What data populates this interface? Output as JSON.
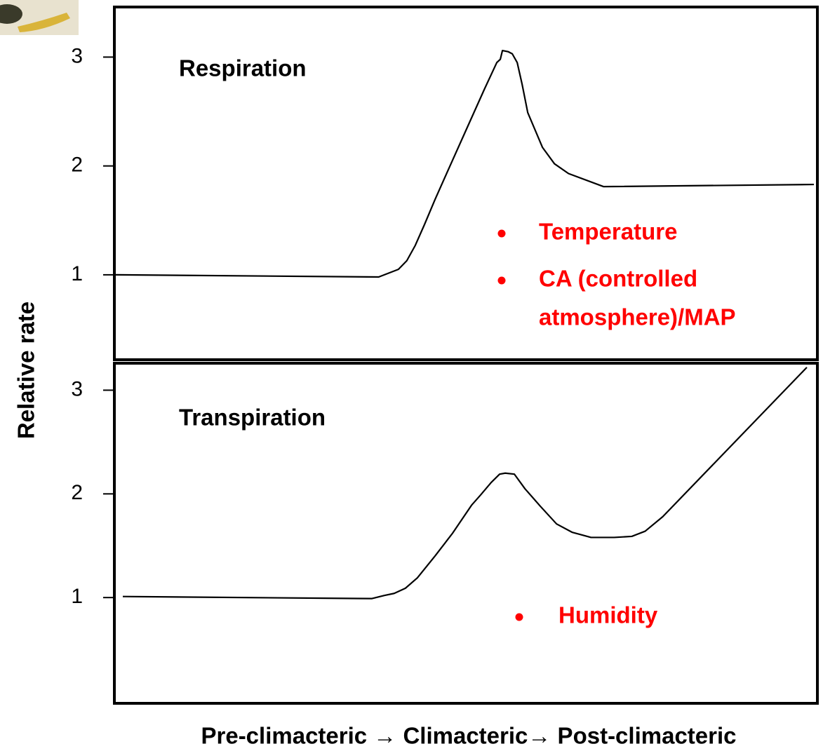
{
  "y_label": "Relative rate",
  "x_label": "Pre-climacteric →  Climacteric→ Post-climacteric",
  "chart_data": [
    {
      "type": "line",
      "title": "Respiration",
      "xlim": [
        0,
        100
      ],
      "ylim": [
        0.22,
        3.46
      ],
      "yticks": [
        1,
        2,
        3
      ],
      "x": [
        0.2,
        37.6,
        40.4,
        41.6,
        42.8,
        44.1,
        45.6,
        47.6,
        50.1,
        52.6,
        54.4,
        54.9,
        55.2,
        56.0,
        56.6,
        57.3,
        58.0,
        58.8,
        60.9,
        62.6,
        64.6,
        69.6,
        99.5
      ],
      "series": [
        {
          "color": "#000000",
          "values": [
            1.0,
            0.98,
            1.05,
            1.13,
            1.27,
            1.46,
            1.69,
            1.98,
            2.34,
            2.7,
            2.95,
            2.98,
            3.06,
            3.05,
            3.03,
            2.95,
            2.75,
            2.49,
            2.17,
            2.02,
            1.93,
            1.81,
            1.83
          ]
        }
      ],
      "notes": [
        [
          "Temperature"
        ],
        [
          "CA (controlled",
          "atmosphere)/MAP"
        ]
      ]
    },
    {
      "type": "line",
      "title": "Transpiration",
      "xlim": [
        0,
        100
      ],
      "ylim": [
        -0.02,
        3.26
      ],
      "yticks": [
        1,
        2,
        3
      ],
      "x": [
        1.2,
        36.6,
        38.4,
        39.8,
        41.4,
        43.1,
        45.6,
        48.1,
        50.8,
        52.1,
        53.6,
        54.8,
        55.6,
        56.9,
        58.4,
        60.6,
        62.9,
        65.1,
        67.8,
        71.1,
        73.6,
        75.5,
        78.0,
        98.5
      ],
      "series": [
        {
          "color": "#000000",
          "values": [
            1.01,
            0.99,
            1.02,
            1.04,
            1.09,
            1.19,
            1.4,
            1.62,
            1.89,
            1.99,
            2.11,
            2.19,
            2.2,
            2.19,
            2.05,
            1.88,
            1.71,
            1.63,
            1.58,
            1.58,
            1.59,
            1.64,
            1.78,
            3.22
          ]
        }
      ],
      "notes": [
        [
          "Humidity"
        ]
      ]
    }
  ]
}
